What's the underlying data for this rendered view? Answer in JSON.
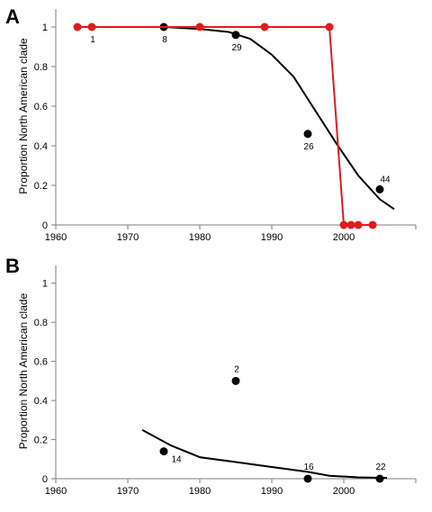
{
  "chart_data": [
    {
      "type": "scatter",
      "panel_label": "A",
      "ylabel": "Proportion North American clade",
      "xlabel": "",
      "xlim": [
        1960,
        2010
      ],
      "ylim": [
        0,
        1.1
      ],
      "xticks": [
        1960,
        1970,
        1980,
        1990,
        2000
      ],
      "yticks": [
        0,
        0.2,
        0.4,
        0.6,
        0.8,
        1
      ],
      "series": [
        {
          "kind": "points",
          "color": "#000000",
          "points": [
            {
              "x": 1975,
              "y": 1.0,
              "label": "8"
            },
            {
              "x": 1985,
              "y": 0.96,
              "label": "29"
            },
            {
              "x": 1995,
              "y": 0.46,
              "label": "26"
            },
            {
              "x": 2005,
              "y": 0.18,
              "label": "44"
            }
          ]
        },
        {
          "kind": "fit",
          "color": "#000000",
          "x": [
            1963,
            1970,
            1975,
            1980,
            1984,
            1987,
            1990,
            1993,
            1996,
            1999,
            2002,
            2005,
            2007
          ],
          "y": [
            1.0,
            1.0,
            1.0,
            0.99,
            0.975,
            0.94,
            0.86,
            0.75,
            0.58,
            0.41,
            0.25,
            0.13,
            0.08
          ]
        },
        {
          "kind": "line-points",
          "color": "#e31a1c",
          "points": [
            {
              "x": 1963,
              "y": 1,
              "label": ""
            },
            {
              "x": 1965,
              "y": 1,
              "label": "1"
            },
            {
              "x": 1980,
              "y": 1,
              "label": ""
            },
            {
              "x": 1989,
              "y": 1,
              "label": ""
            },
            {
              "x": 1998,
              "y": 1,
              "label": ""
            },
            {
              "x": 2000,
              "y": 0,
              "label": ""
            },
            {
              "x": 2001,
              "y": 0,
              "label": ""
            },
            {
              "x": 2002,
              "y": 0,
              "label": ""
            },
            {
              "x": 2004,
              "y": 0,
              "label": ""
            }
          ]
        }
      ]
    },
    {
      "type": "scatter",
      "panel_label": "B",
      "ylabel": "Proportion North American clade",
      "xlabel": "",
      "xlim": [
        1960,
        2010
      ],
      "ylim": [
        0,
        1.1
      ],
      "xticks": [
        1960,
        1970,
        1980,
        1990,
        2000
      ],
      "yticks": [
        0,
        0.2,
        0.4,
        0.6,
        0.8,
        1
      ],
      "series": [
        {
          "kind": "points",
          "color": "#000000",
          "points": [
            {
              "x": 1975,
              "y": 0.14,
              "label": "14"
            },
            {
              "x": 1985,
              "y": 0.5,
              "label": "2"
            },
            {
              "x": 1995,
              "y": 0.0,
              "label": "16"
            },
            {
              "x": 2005,
              "y": 0.0,
              "label": "22"
            }
          ]
        },
        {
          "kind": "fit",
          "color": "#000000",
          "x": [
            1972,
            1976,
            1980,
            1985,
            1990,
            1995,
            1998,
            2002,
            2006
          ],
          "y": [
            0.25,
            0.17,
            0.11,
            0.085,
            0.06,
            0.035,
            0.015,
            0.007,
            0.004
          ]
        }
      ]
    }
  ]
}
